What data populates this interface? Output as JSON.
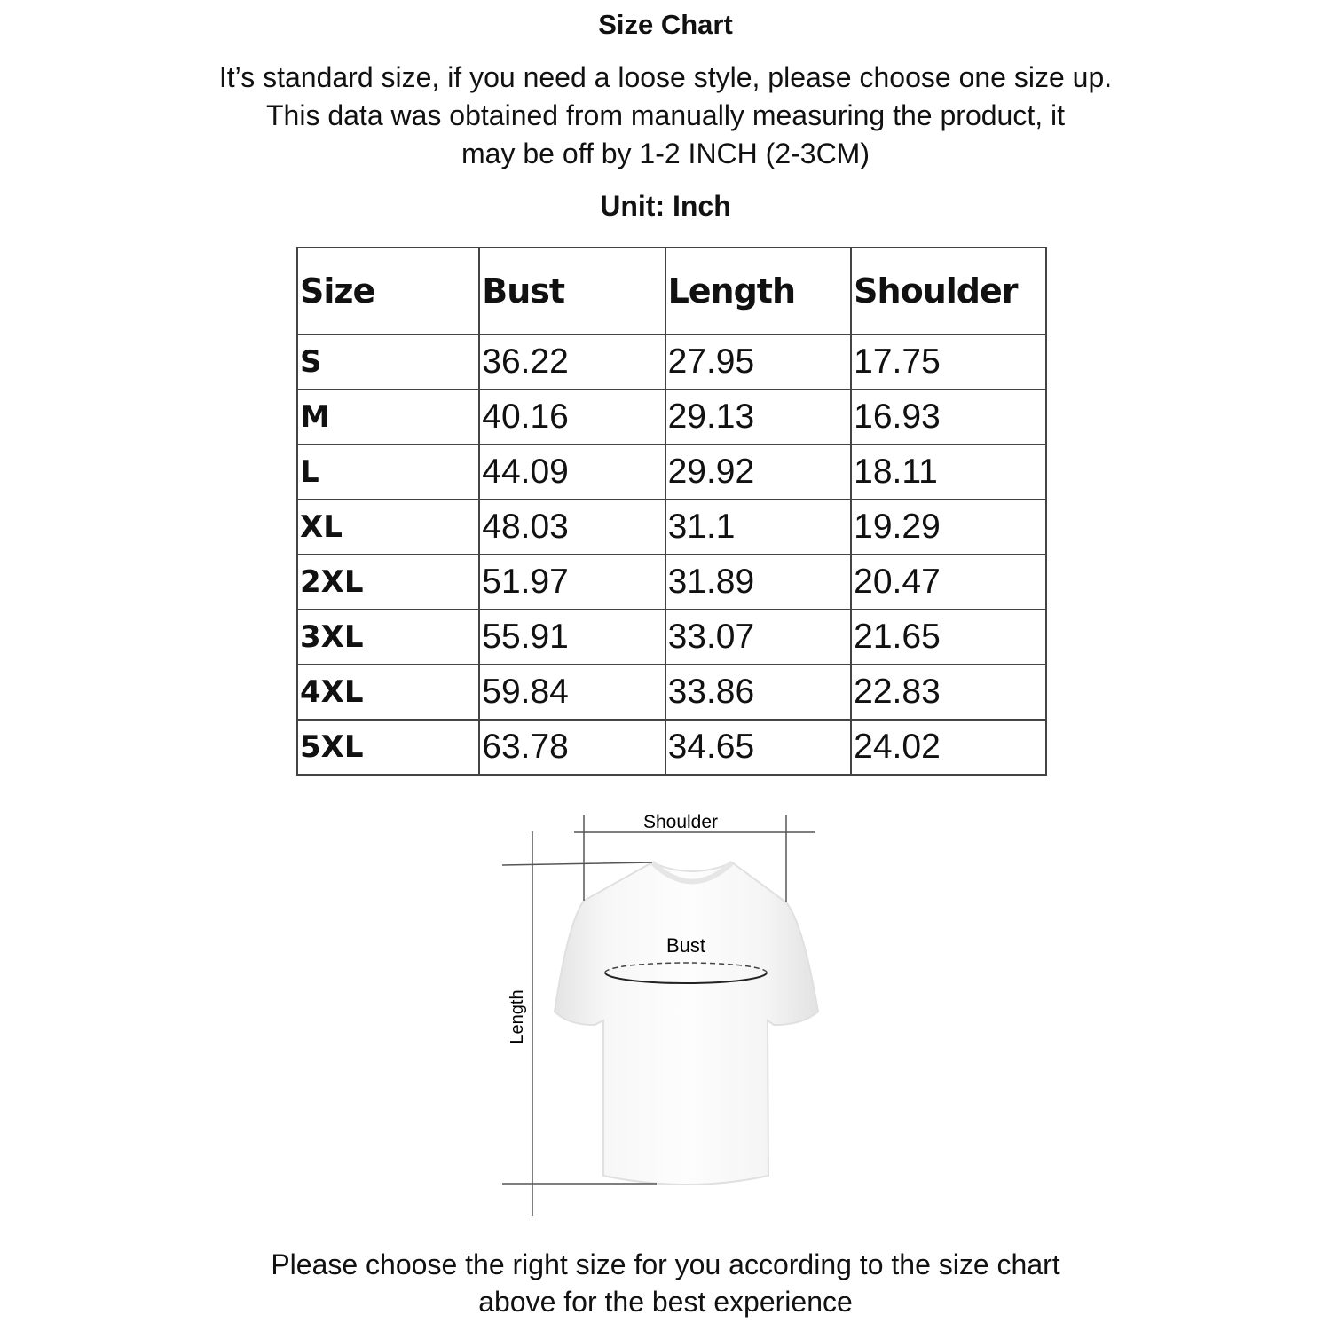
{
  "title": "Size Chart",
  "intro": [
    "It’s standard size, if you need a loose style, please choose one size up.",
    "This data was obtained from manually measuring the product, it",
    "may be off by 1-2 INCH (2-3CM)"
  ],
  "unit": "Unit: Inch",
  "table": {
    "headers": [
      "Size",
      "Bust",
      "Length",
      "Shoulder"
    ],
    "rows": [
      [
        "S",
        "36.22",
        "27.95",
        "17.75"
      ],
      [
        "M",
        "40.16",
        "29.13",
        "16.93"
      ],
      [
        "L",
        "44.09",
        "29.92",
        "18.11"
      ],
      [
        "XL",
        "48.03",
        "31.1",
        "19.29"
      ],
      [
        "2XL",
        "51.97",
        "31.89",
        "20.47"
      ],
      [
        "3XL",
        "55.91",
        "33.07",
        "21.65"
      ],
      [
        "4XL",
        "59.84",
        "33.86",
        "22.83"
      ],
      [
        "5XL",
        "63.78",
        "34.65",
        "24.02"
      ]
    ]
  },
  "diagram": {
    "shoulder_label": "Shoulder",
    "bust_label": "Bust",
    "length_label": "Length"
  },
  "footer": [
    "Please choose the right size for you according to the size chart",
    "above for the best experience"
  ]
}
